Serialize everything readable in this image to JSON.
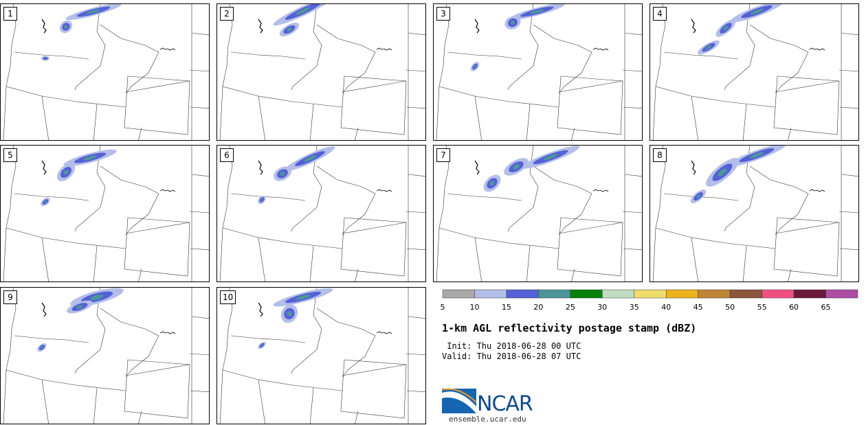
{
  "panels": [
    {
      "number": "1"
    },
    {
      "number": "2"
    },
    {
      "number": "3"
    },
    {
      "number": "4"
    },
    {
      "number": "5"
    },
    {
      "number": "6"
    },
    {
      "number": "7"
    },
    {
      "number": "8"
    },
    {
      "number": "9"
    },
    {
      "number": "10"
    }
  ],
  "colorbar": {
    "labels": [
      "5",
      "10",
      "15",
      "20",
      "25",
      "30",
      "35",
      "40",
      "45",
      "50",
      "55",
      "60",
      "65"
    ],
    "colors": [
      "#a9a9a9",
      "#b4bfe9",
      "#5560d8",
      "#4c9699",
      "#06820a",
      "#c0ddc0",
      "#eedd6a",
      "#edb21d",
      "#bd8535",
      "#8c563a",
      "#f05080",
      "#6a1a38",
      "#ae4ca6"
    ]
  },
  "title": "1-km AGL reflectivity postage stamp (dBZ)",
  "init": " Init: Thu 2018-06-28 00 UTC",
  "valid": "Valid: Thu 2018-06-28 07 UTC",
  "logo": {
    "text": "NCAR",
    "site": "ensemble.ucar.edu"
  }
}
